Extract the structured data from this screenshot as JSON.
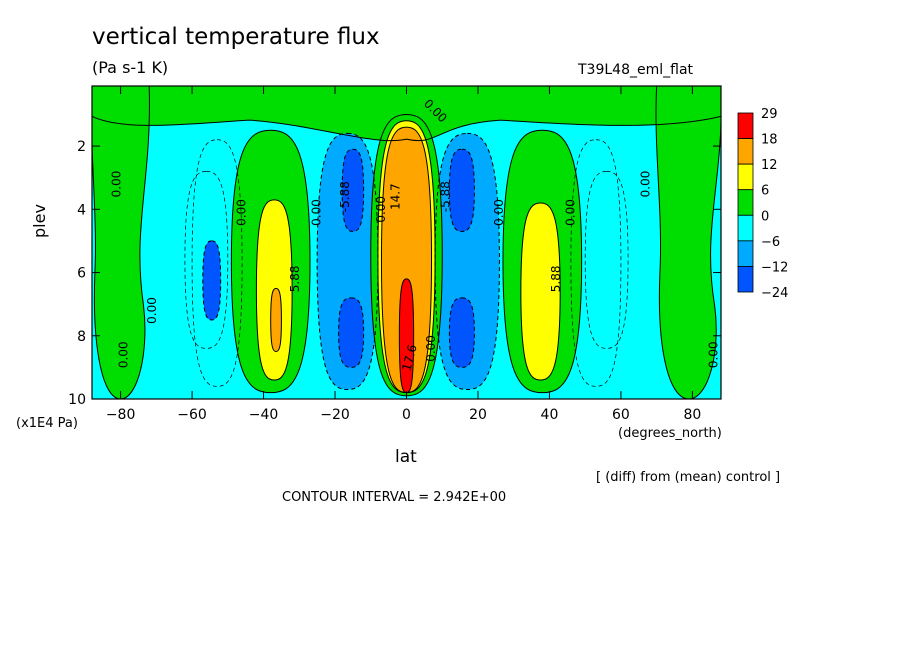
{
  "title": "vertical temperature flux",
  "units": "(Pa s-1 K)",
  "run_label": "T39L48_eml_flat",
  "ylabel": "plev",
  "yscale_label": "(x1E4 Pa)",
  "xlabel": "lat",
  "xunits": "(degrees_north)",
  "diff_note": "[ (diff) from (mean) control ]",
  "contour_interval": "CONTOUR INTERVAL = 2.942E+00",
  "chart_data": {
    "type": "heatmap",
    "x_name": "lat",
    "y_name": "plev",
    "xlim": [
      -88,
      88
    ],
    "ylim": [
      10,
      0.1
    ],
    "x_ticks": [
      -80,
      -60,
      -40,
      -20,
      0,
      20,
      40,
      60,
      80
    ],
    "x_tick_labels": [
      "−80",
      "−60",
      "−40",
      "−20",
      "0",
      "20",
      "40",
      "60",
      "80"
    ],
    "y_ticks": [
      2,
      4,
      6,
      8,
      10
    ],
    "y_tick_labels": [
      "2",
      "4",
      "6",
      "8",
      "10"
    ],
    "colorbar": {
      "levels": [
        "29",
        "18",
        "12",
        "6",
        "0",
        "−6",
        "−12",
        "−24"
      ],
      "colors": [
        "#ff0000",
        "#ffa500",
        "#ffff00",
        "#00dd00",
        "#00ffff",
        "#00aaff",
        "#0055ff"
      ]
    },
    "colors": {
      "background_level": "#00ffff",
      "green": "#00dd00",
      "yellow": "#ffff00",
      "orange": "#ffa500",
      "red": "#ff0000",
      "mid_blue": "#00aaff",
      "dark_blue": "#0055ff",
      "pale_cyan_edge": "#aaffff"
    },
    "features": [
      {
        "kind": "cells",
        "level": "green",
        "x": [
          -88,
          -72
        ],
        "y": [
          0.1,
          10
        ],
        "shape": "tall"
      },
      {
        "kind": "cells",
        "level": "green",
        "x": [
          70,
          88
        ],
        "y": [
          0.1,
          10
        ],
        "shape": "tall"
      },
      {
        "kind": "cells",
        "level": "green",
        "x": [
          -88,
          88
        ],
        "y": [
          0.1,
          1.3
        ],
        "shape": "top_band"
      },
      {
        "kind": "cells",
        "level": "green",
        "x": [
          -49,
          -27
        ],
        "y": [
          1.5,
          9.8
        ]
      },
      {
        "kind": "cells",
        "level": "green",
        "x": [
          27,
          49
        ],
        "y": [
          1.5,
          9.8
        ]
      },
      {
        "kind": "cells",
        "level": "yellow",
        "x": [
          -42,
          -32
        ],
        "y": [
          3.7,
          9.4
        ]
      },
      {
        "kind": "cells",
        "level": "yellow",
        "x": [
          32,
          43
        ],
        "y": [
          3.8,
          9.4
        ]
      },
      {
        "kind": "cells",
        "level": "orange",
        "x": [
          -38,
          -35
        ],
        "y": [
          6.5,
          8.5
        ]
      },
      {
        "kind": "cells",
        "level": "mid_blue",
        "x": [
          -25,
          -8
        ],
        "y": [
          1.6,
          9.7
        ]
      },
      {
        "kind": "cells",
        "level": "mid_blue",
        "x": [
          8,
          26
        ],
        "y": [
          1.6,
          9.7
        ]
      },
      {
        "kind": "cells",
        "level": "dark_blue",
        "x": [
          -18,
          -12
        ],
        "y": [
          2.1,
          4.7
        ]
      },
      {
        "kind": "cells",
        "level": "dark_blue",
        "x": [
          -19,
          -12
        ],
        "y": [
          6.8,
          9.0
        ]
      },
      {
        "kind": "cells",
        "level": "dark_blue",
        "x": [
          12,
          19
        ],
        "y": [
          2.1,
          4.7
        ]
      },
      {
        "kind": "cells",
        "level": "dark_blue",
        "x": [
          12,
          19
        ],
        "y": [
          6.8,
          9.0
        ]
      },
      {
        "kind": "cells",
        "level": "dark_blue",
        "x": [
          -57,
          -52
        ],
        "y": [
          5.0,
          7.5
        ]
      },
      {
        "kind": "cells",
        "level": "green",
        "x": [
          -10,
          10
        ],
        "y": [
          1.0,
          9.9
        ]
      },
      {
        "kind": "cells",
        "level": "yellow",
        "x": [
          -8,
          8
        ],
        "y": [
          1.2,
          9.8
        ]
      },
      {
        "kind": "cells",
        "level": "orange",
        "x": [
          -7,
          7
        ],
        "y": [
          1.4,
          9.8
        ]
      },
      {
        "kind": "cells",
        "level": "red",
        "x": [
          -2,
          2
        ],
        "y": [
          6.2,
          9.8
        ]
      }
    ],
    "contour_labels": [
      {
        "text": "0.00",
        "x": -81,
        "y": 3.2,
        "rot": -90
      },
      {
        "text": "0.00",
        "x": -79,
        "y": 8.6,
        "rot": -90
      },
      {
        "text": "0.00",
        "x": -71,
        "y": 7.2,
        "rot": -90
      },
      {
        "text": "0.00",
        "x": -46,
        "y": 4.1,
        "rot": -90
      },
      {
        "text": "5.88",
        "x": -31,
        "y": 6.2,
        "rot": -90
      },
      {
        "text": "0.00",
        "x": -25,
        "y": 4.1,
        "rot": -90
      },
      {
        "text": "-5.88",
        "x": -17,
        "y": 3.6,
        "rot": -90
      },
      {
        "text": "0.00",
        "x": -7,
        "y": 4.0,
        "rot": -90
      },
      {
        "text": "14.7",
        "x": -3,
        "y": 3.6,
        "rot": -90
      },
      {
        "text": "0.00",
        "x": 8,
        "y": 0.9,
        "rot": 45
      },
      {
        "text": "0.00",
        "x": 7,
        "y": 8.4,
        "rot": -90
      },
      {
        "text": "17.6",
        "x": 1,
        "y": 8.7,
        "rot": -75
      },
      {
        "text": "-5.88",
        "x": 11,
        "y": 3.6,
        "rot": -90
      },
      {
        "text": "0.00",
        "x": 26,
        "y": 4.1,
        "rot": -90
      },
      {
        "text": "5.88",
        "x": 42,
        "y": 6.2,
        "rot": -90
      },
      {
        "text": "0.00",
        "x": 46,
        "y": 4.1,
        "rot": -90
      },
      {
        "text": "0.00",
        "x": 67,
        "y": 3.2,
        "rot": -90
      },
      {
        "text": "0.00",
        "x": 86,
        "y": 8.6,
        "rot": -90
      }
    ]
  }
}
